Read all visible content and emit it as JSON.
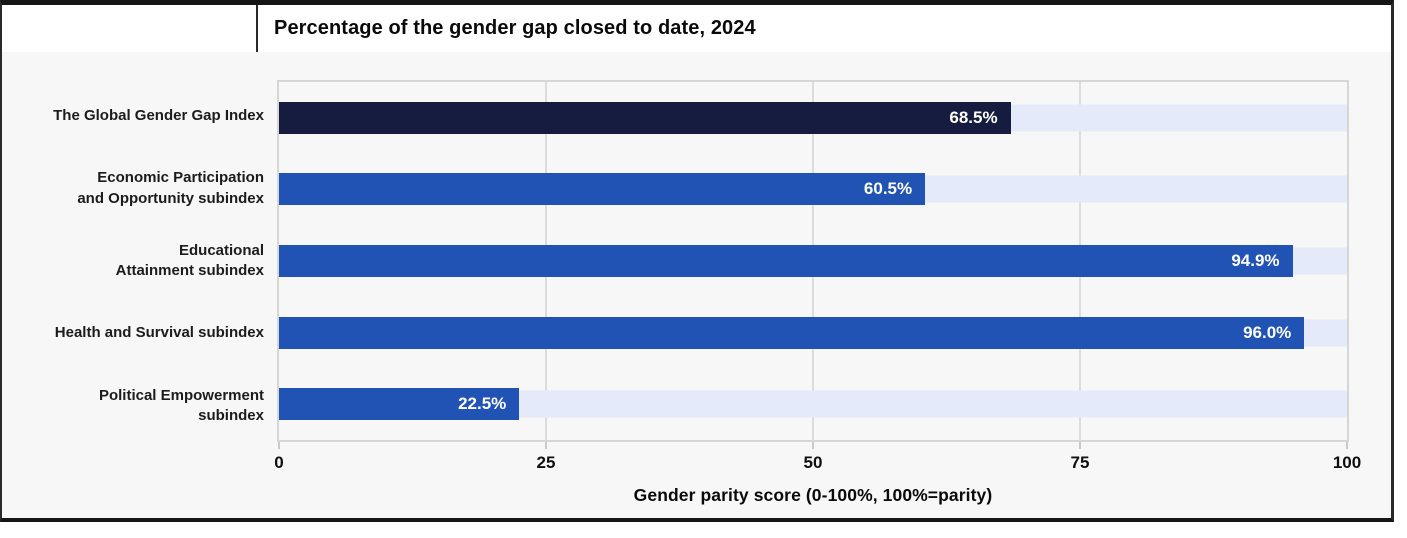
{
  "chart_data": {
    "type": "bar",
    "orientation": "horizontal",
    "title": "Percentage of the gender gap closed to date, 2024",
    "categories": [
      "The Global Gender Gap Index",
      "Economic Participation\nand Opportunity subindex",
      "Educational\nAttainment subindex",
      "Health and Survival subindex",
      "Political Empowerment\nsubindex"
    ],
    "values": [
      68.5,
      60.5,
      94.9,
      96.0,
      22.5
    ],
    "value_labels": [
      "68.5%",
      "60.5%",
      "94.9%",
      "96.0%",
      "22.5%"
    ],
    "bar_colors": [
      "#161c40",
      "#2153b4",
      "#2153b4",
      "#2153b4",
      "#2153b4"
    ],
    "track_color": "#e4eaf9",
    "xlabel": "Gender parity score (0-100%, 100%=parity)",
    "xlim": [
      0,
      100
    ],
    "xticks": [
      0,
      25,
      50,
      75,
      100
    ],
    "xtick_labels": [
      "0",
      "25",
      "50",
      "75",
      "100"
    ],
    "gridlines": [
      25,
      50,
      75
    ],
    "grid": true,
    "legend": false
  },
  "colors": {
    "card_background": "#f7f7f7",
    "title_band_background": "#ffffff",
    "plot_background": "#f7f7f8",
    "border_black": "#161616",
    "plot_border": "#d6d6d6",
    "gridline": "#dcdcdc",
    "bar_navy": "#161c40",
    "bar_blue": "#2153b4",
    "track_blue": "#e4eaf9",
    "value_text": "#ffffff",
    "label_text": "#1c1c1c"
  }
}
